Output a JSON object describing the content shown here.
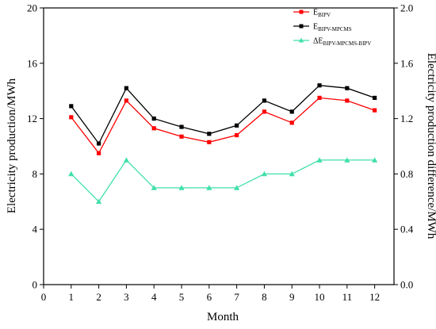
{
  "chart_data": {
    "type": "line",
    "x": [
      1,
      2,
      3,
      4,
      5,
      6,
      7,
      8,
      9,
      10,
      11,
      12
    ],
    "xlabel": "Month",
    "ylabel": "Electricity production/MWh",
    "y2label": "Electricity production difference/MWh",
    "xlim": [
      0,
      12.7
    ],
    "ylim": [
      0,
      20
    ],
    "y2lim": [
      0,
      2.0
    ],
    "xticks": [
      "0",
      "1",
      "2",
      "3",
      "4",
      "5",
      "6",
      "7",
      "8",
      "9",
      "10",
      "11",
      "12"
    ],
    "yticks": [
      "0",
      "4",
      "8",
      "12",
      "16",
      "20"
    ],
    "y2ticks": [
      "0.0",
      "0.4",
      "0.8",
      "1.2",
      "1.6",
      "2.0"
    ],
    "grid": false,
    "legend_position": "top-right",
    "series": [
      {
        "name_main": "E",
        "name_sub": "BIPV",
        "axis": "left",
        "color": "#ff0000",
        "marker": "square",
        "values": [
          12.1,
          9.5,
          13.3,
          11.3,
          10.7,
          10.3,
          10.8,
          12.5,
          11.7,
          13.5,
          13.3,
          12.6
        ]
      },
      {
        "name_main": "E",
        "name_sub": "BIPV-MPCMS",
        "axis": "left",
        "color": "#000000",
        "marker": "square",
        "values": [
          12.9,
          10.2,
          14.2,
          12.0,
          11.4,
          10.9,
          11.5,
          13.3,
          12.5,
          14.4,
          14.2,
          13.5
        ]
      },
      {
        "name_main": "ΔE",
        "name_sub": "BIPV-MPCMS-BIPV",
        "axis": "right",
        "color": "#40e0a8",
        "marker": "triangle",
        "values": [
          0.8,
          0.6,
          0.9,
          0.7,
          0.7,
          0.7,
          0.7,
          0.8,
          0.8,
          0.9,
          0.9,
          0.9
        ]
      }
    ]
  }
}
